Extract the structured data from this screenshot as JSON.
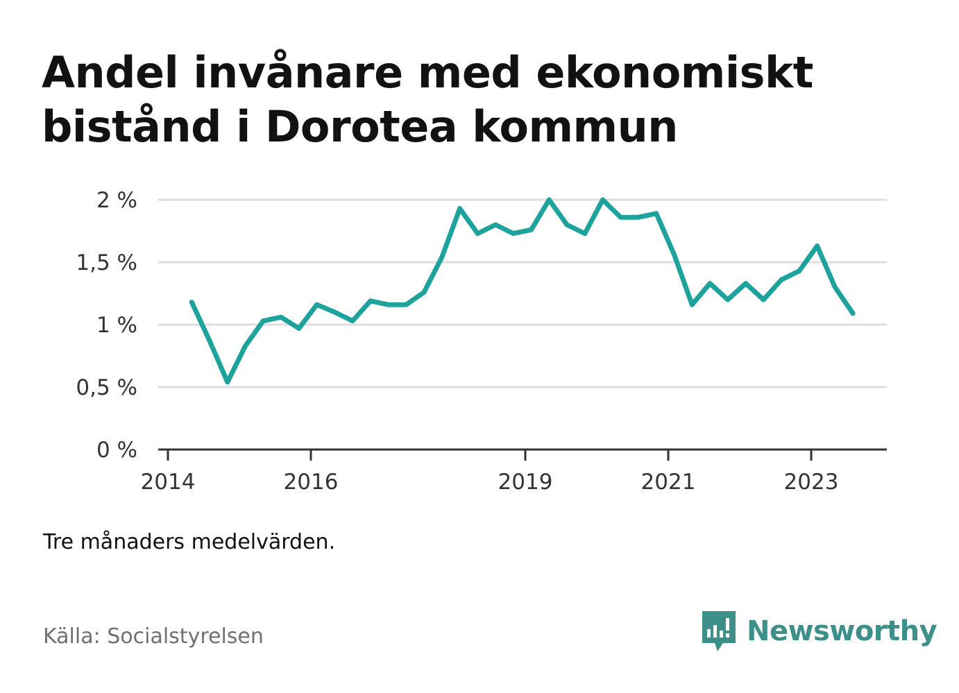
{
  "title": "Andel invånare med ekonomiskt bistånd i Dorotea kommun",
  "note": "Tre månaders medelvärden.",
  "source": "Källa: Socialstyrelsen",
  "brand": {
    "name": "Newsworthy",
    "icon": "newsworthy-logo-icon",
    "color": "#3d8f8a"
  },
  "colors": {
    "line": "#1ea39c",
    "grid": "#dddddd",
    "axis": "#333333",
    "text": "#333333"
  },
  "chart_data": {
    "type": "line",
    "title": "Andel invånare med ekonomiskt bistånd i Dorotea kommun",
    "xlabel": "",
    "ylabel": "",
    "x_ticks": [
      "2014",
      "2016",
      "2019",
      "2021",
      "2023"
    ],
    "y_ticks": [
      "0 %",
      "0,5 %",
      "1 %",
      "1,5 %",
      "2 %"
    ],
    "ylim": [
      0,
      2
    ],
    "grid": true,
    "series": [
      {
        "values": [
          {
            "x": "2014-05",
            "y": 1.18
          },
          {
            "x": "2014-08",
            "y": 0.87
          },
          {
            "x": "2014-11",
            "y": 0.54
          },
          {
            "x": "2015-02",
            "y": 0.83
          },
          {
            "x": "2015-05",
            "y": 1.03
          },
          {
            "x": "2015-08",
            "y": 1.06
          },
          {
            "x": "2015-11",
            "y": 0.97
          },
          {
            "x": "2016-02",
            "y": 1.16
          },
          {
            "x": "2016-05",
            "y": 1.1
          },
          {
            "x": "2016-08",
            "y": 1.03
          },
          {
            "x": "2016-11",
            "y": 1.19
          },
          {
            "x": "2017-02",
            "y": 1.16
          },
          {
            "x": "2017-05",
            "y": 1.16
          },
          {
            "x": "2017-08",
            "y": 1.26
          },
          {
            "x": "2017-11",
            "y": 1.54
          },
          {
            "x": "2018-02",
            "y": 1.93
          },
          {
            "x": "2018-05",
            "y": 1.73
          },
          {
            "x": "2018-08",
            "y": 1.8
          },
          {
            "x": "2018-11",
            "y": 1.73
          },
          {
            "x": "2019-02",
            "y": 1.76
          },
          {
            "x": "2019-05",
            "y": 2.0
          },
          {
            "x": "2019-08",
            "y": 1.8
          },
          {
            "x": "2019-11",
            "y": 1.73
          },
          {
            "x": "2020-02",
            "y": 2.0
          },
          {
            "x": "2020-05",
            "y": 1.86
          },
          {
            "x": "2020-08",
            "y": 1.86
          },
          {
            "x": "2020-11",
            "y": 1.89
          },
          {
            "x": "2021-02",
            "y": 1.56
          },
          {
            "x": "2021-05",
            "y": 1.16
          },
          {
            "x": "2021-08",
            "y": 1.33
          },
          {
            "x": "2021-11",
            "y": 1.2
          },
          {
            "x": "2022-02",
            "y": 1.33
          },
          {
            "x": "2022-05",
            "y": 1.2
          },
          {
            "x": "2022-08",
            "y": 1.36
          },
          {
            "x": "2022-11",
            "y": 1.43
          },
          {
            "x": "2023-02",
            "y": 1.63
          },
          {
            "x": "2023-05",
            "y": 1.3
          },
          {
            "x": "2023-08",
            "y": 1.09
          }
        ]
      }
    ]
  }
}
